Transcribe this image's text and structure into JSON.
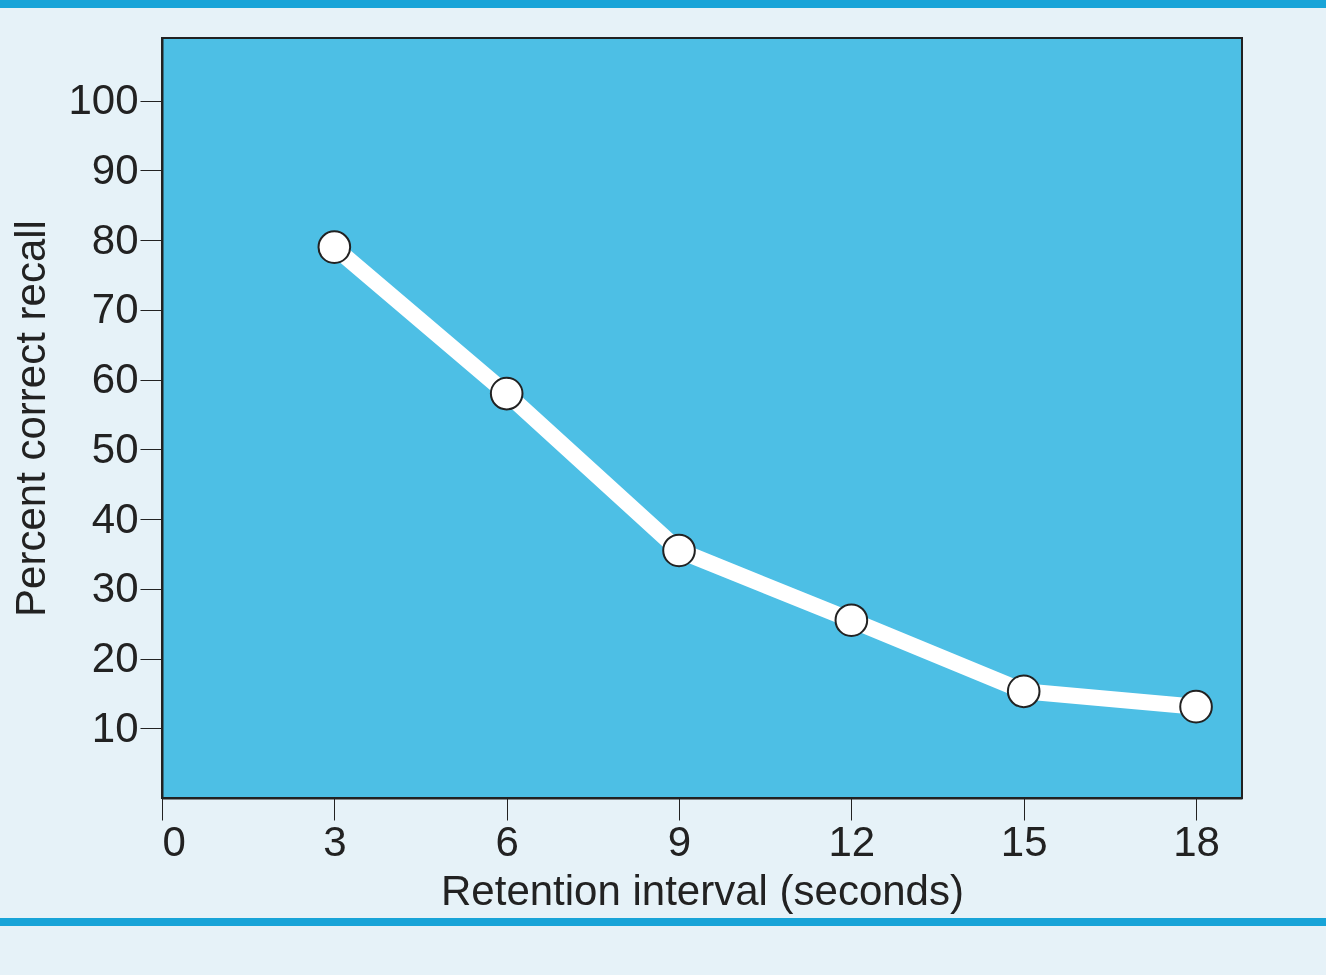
{
  "chart_data": {
    "type": "line",
    "xlabel": "Retention interval (seconds)",
    "ylabel": "Percent correct recall",
    "x": [
      3,
      6,
      9,
      12,
      15,
      18
    ],
    "series": [
      {
        "color": "#ffffff",
        "values": [
          79,
          58,
          35.5,
          25.5,
          15.3,
          13.1
        ]
      }
    ],
    "xlim": [
      0,
      18.8
    ],
    "xticks": [
      0,
      3,
      6,
      9,
      12,
      15,
      18
    ],
    "ylim": [
      0,
      109
    ],
    "yticks": [
      10,
      20,
      30,
      40,
      50,
      60,
      70,
      80,
      90,
      100
    ],
    "grid": false,
    "legend": false,
    "marker": "circle",
    "line_style": "solid"
  }
}
